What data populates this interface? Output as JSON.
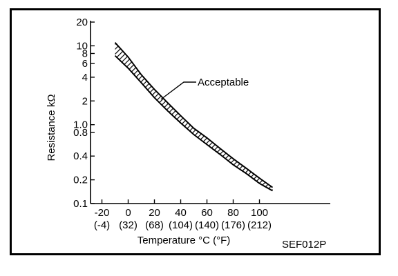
{
  "chart_data": {
    "type": "line",
    "title": "",
    "xlabel": "Temperature °C (°F)",
    "ylabel": "Resistance kΩ",
    "y_scale": "log",
    "ylim": [
      0.1,
      20
    ],
    "xlim": [
      -20,
      140
    ],
    "x_ticks": [
      {
        "c": -20,
        "label": "-20",
        "sub": "(-4)"
      },
      {
        "c": 0,
        "label": "0",
        "sub": "(32)"
      },
      {
        "c": 20,
        "label": "20",
        "sub": "(68)"
      },
      {
        "c": 40,
        "label": "40",
        "sub": "(104)"
      },
      {
        "c": 60,
        "label": "60",
        "sub": "(140)"
      },
      {
        "c": 80,
        "label": "80",
        "sub": "(176)"
      },
      {
        "c": 100,
        "label": "100",
        "sub": "(212)"
      }
    ],
    "y_ticks": [
      {
        "v": 20,
        "label": "20"
      },
      {
        "v": 10,
        "label": "10"
      },
      {
        "v": 8,
        "label": "8"
      },
      {
        "v": 6,
        "label": "6"
      },
      {
        "v": 4,
        "label": "4"
      },
      {
        "v": 2,
        "label": "2"
      },
      {
        "v": 1.0,
        "label": "1.0"
      },
      {
        "v": 0.8,
        "label": "0.8"
      },
      {
        "v": 0.4,
        "label": "0.4"
      },
      {
        "v": 0.2,
        "label": "0.2"
      },
      {
        "v": 0.1,
        "label": "0.1"
      }
    ],
    "series": [
      {
        "x": [
          -10,
          0,
          10,
          20,
          30,
          40,
          50,
          60,
          70,
          80,
          90,
          100,
          110
        ],
        "values": [
          11,
          7.2,
          4.3,
          2.8,
          1.9,
          1.3,
          0.9,
          0.68,
          0.5,
          0.37,
          0.28,
          0.21,
          0.16
        ]
      },
      {
        "x": [
          -10,
          0,
          10,
          20,
          30,
          40,
          50,
          60,
          70,
          80,
          90,
          100,
          110
        ],
        "values": [
          7.5,
          5.2,
          3.4,
          2.2,
          1.5,
          1.05,
          0.75,
          0.56,
          0.42,
          0.31,
          0.24,
          0.18,
          0.145
        ]
      }
    ],
    "annotations": [
      {
        "text": "Acceptable"
      }
    ],
    "figure_code": "SEF012P"
  }
}
